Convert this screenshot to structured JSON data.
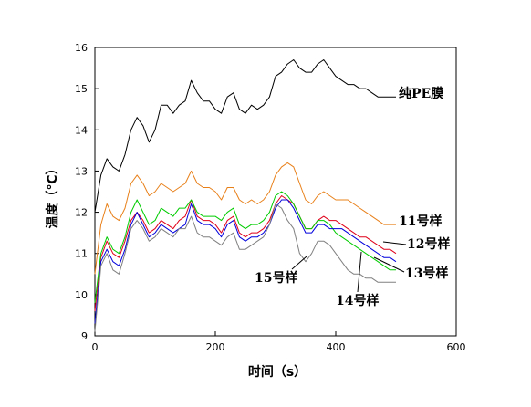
{
  "chart_data": {
    "type": "line",
    "xlabel": "时间（s）",
    "ylabel": "温度（℃）",
    "xlim": [
      0,
      600
    ],
    "ylim": [
      9,
      16
    ],
    "xticks": [
      0,
      200,
      400,
      600
    ],
    "yticks": [
      9,
      10,
      11,
      12,
      13,
      14,
      15,
      16
    ],
    "grid": false,
    "series": [
      {
        "name": "纯PE膜",
        "color": "#000000",
        "x": [
          0,
          10,
          20,
          30,
          40,
          50,
          60,
          70,
          80,
          90,
          100,
          110,
          120,
          130,
          140,
          150,
          160,
          170,
          180,
          190,
          200,
          210,
          220,
          230,
          240,
          250,
          260,
          270,
          280,
          290,
          300,
          310,
          320,
          330,
          340,
          350,
          360,
          370,
          380,
          390,
          400,
          410,
          420,
          430,
          440,
          450,
          460,
          470,
          480,
          490,
          500
        ],
        "values": [
          12.0,
          12.9,
          13.3,
          13.1,
          13.0,
          13.4,
          14.0,
          14.3,
          14.1,
          13.7,
          14.0,
          14.6,
          14.6,
          14.4,
          14.6,
          14.7,
          15.2,
          14.9,
          14.7,
          14.7,
          14.5,
          14.4,
          14.8,
          14.9,
          14.5,
          14.4,
          14.6,
          14.5,
          14.6,
          14.8,
          15.3,
          15.4,
          15.6,
          15.7,
          15.5,
          15.4,
          15.4,
          15.6,
          15.7,
          15.5,
          15.3,
          15.2,
          15.1,
          15.1,
          15.0,
          15.0,
          14.9,
          14.8,
          14.8,
          14.8,
          14.8
        ]
      },
      {
        "name": "11号样",
        "color": "#e8801a",
        "x": [
          0,
          10,
          20,
          30,
          40,
          50,
          60,
          70,
          80,
          90,
          100,
          110,
          120,
          130,
          140,
          150,
          160,
          170,
          180,
          190,
          200,
          210,
          220,
          230,
          240,
          250,
          260,
          270,
          280,
          290,
          300,
          310,
          320,
          330,
          340,
          350,
          360,
          370,
          380,
          390,
          400,
          410,
          420,
          430,
          440,
          450,
          460,
          470,
          480,
          490,
          500
        ],
        "values": [
          10.5,
          11.7,
          12.2,
          11.9,
          11.8,
          12.1,
          12.7,
          12.9,
          12.7,
          12.4,
          12.5,
          12.7,
          12.6,
          12.5,
          12.6,
          12.7,
          13.0,
          12.7,
          12.6,
          12.6,
          12.5,
          12.3,
          12.6,
          12.6,
          12.3,
          12.2,
          12.3,
          12.2,
          12.3,
          12.5,
          12.9,
          13.1,
          13.2,
          13.1,
          12.7,
          12.3,
          12.2,
          12.4,
          12.5,
          12.4,
          12.3,
          12.3,
          12.3,
          12.2,
          12.1,
          12.0,
          11.9,
          11.8,
          11.7,
          11.7,
          11.7
        ]
      },
      {
        "name": "12号样",
        "color": "#e0001a",
        "x": [
          0,
          10,
          20,
          30,
          40,
          50,
          60,
          70,
          80,
          90,
          100,
          110,
          120,
          130,
          140,
          150,
          160,
          170,
          180,
          190,
          200,
          210,
          220,
          230,
          240,
          250,
          260,
          270,
          280,
          290,
          300,
          310,
          320,
          330,
          340,
          350,
          360,
          370,
          380,
          390,
          400,
          410,
          420,
          430,
          440,
          450,
          460,
          470,
          480,
          490,
          500
        ],
        "values": [
          9.6,
          10.9,
          11.3,
          11.0,
          10.9,
          11.3,
          11.8,
          12.0,
          11.8,
          11.5,
          11.6,
          11.8,
          11.7,
          11.6,
          11.8,
          11.9,
          12.3,
          11.9,
          11.8,
          11.8,
          11.7,
          11.5,
          11.8,
          11.9,
          11.5,
          11.4,
          11.5,
          11.5,
          11.6,
          11.8,
          12.2,
          12.4,
          12.3,
          12.2,
          11.9,
          11.6,
          11.6,
          11.8,
          11.9,
          11.8,
          11.8,
          11.7,
          11.6,
          11.5,
          11.4,
          11.4,
          11.3,
          11.2,
          11.1,
          11.1,
          11.0
        ]
      },
      {
        "name": "13号样",
        "color": "#00cc00",
        "x": [
          0,
          10,
          20,
          30,
          40,
          50,
          60,
          70,
          80,
          90,
          100,
          110,
          120,
          130,
          140,
          150,
          160,
          170,
          180,
          190,
          200,
          210,
          220,
          230,
          240,
          250,
          260,
          270,
          280,
          290,
          300,
          310,
          320,
          330,
          340,
          350,
          360,
          370,
          380,
          390,
          400,
          410,
          420,
          430,
          440,
          450,
          460,
          470,
          480,
          490,
          500
        ],
        "values": [
          9.8,
          11.0,
          11.4,
          11.1,
          11.0,
          11.4,
          12.0,
          12.3,
          12.0,
          11.7,
          11.8,
          12.1,
          12.0,
          11.9,
          12.1,
          12.1,
          12.3,
          12.0,
          11.9,
          11.9,
          11.9,
          11.8,
          12.0,
          12.1,
          11.7,
          11.6,
          11.7,
          11.7,
          11.8,
          12.0,
          12.4,
          12.5,
          12.4,
          12.2,
          11.9,
          11.6,
          11.6,
          11.8,
          11.8,
          11.7,
          11.5,
          11.4,
          11.3,
          11.2,
          11.1,
          11.0,
          10.9,
          10.8,
          10.7,
          10.6,
          10.6
        ]
      },
      {
        "name": "14号样",
        "color": "#0000dd",
        "x": [
          0,
          10,
          20,
          30,
          40,
          50,
          60,
          70,
          80,
          90,
          100,
          110,
          120,
          130,
          140,
          150,
          160,
          170,
          180,
          190,
          200,
          210,
          220,
          230,
          240,
          250,
          260,
          270,
          280,
          290,
          300,
          310,
          320,
          330,
          340,
          350,
          360,
          370,
          380,
          390,
          400,
          410,
          420,
          430,
          440,
          450,
          460,
          470,
          480,
          490,
          500
        ],
        "values": [
          9.3,
          10.8,
          11.1,
          10.8,
          10.7,
          11.1,
          11.7,
          12.0,
          11.7,
          11.4,
          11.5,
          11.7,
          11.6,
          11.5,
          11.6,
          11.7,
          12.2,
          11.8,
          11.7,
          11.7,
          11.6,
          11.4,
          11.7,
          11.8,
          11.4,
          11.3,
          11.4,
          11.4,
          11.5,
          11.7,
          12.1,
          12.3,
          12.3,
          12.1,
          11.8,
          11.5,
          11.5,
          11.7,
          11.7,
          11.6,
          11.6,
          11.6,
          11.5,
          11.4,
          11.3,
          11.2,
          11.1,
          11.0,
          10.9,
          10.9,
          10.8
        ]
      },
      {
        "name": "15号样",
        "color": "#808080",
        "x": [
          0,
          10,
          20,
          30,
          40,
          50,
          60,
          70,
          80,
          90,
          100,
          110,
          120,
          130,
          140,
          150,
          160,
          170,
          180,
          190,
          200,
          210,
          220,
          230,
          240,
          250,
          260,
          270,
          280,
          290,
          300,
          310,
          320,
          330,
          340,
          350,
          360,
          370,
          380,
          390,
          400,
          410,
          420,
          430,
          440,
          450,
          460,
          470,
          480,
          490,
          500
        ],
        "values": [
          9.1,
          10.7,
          11.0,
          10.6,
          10.5,
          11.0,
          11.6,
          11.8,
          11.6,
          11.3,
          11.4,
          11.6,
          11.5,
          11.4,
          11.6,
          11.6,
          11.9,
          11.5,
          11.4,
          11.4,
          11.3,
          11.2,
          11.4,
          11.5,
          11.1,
          11.1,
          11.2,
          11.3,
          11.4,
          11.7,
          12.2,
          12.1,
          11.8,
          11.6,
          11.0,
          10.8,
          11.0,
          11.3,
          11.3,
          11.2,
          11.0,
          10.8,
          10.6,
          10.5,
          10.5,
          10.4,
          10.4,
          10.3,
          10.3,
          10.3,
          10.3
        ]
      }
    ]
  }
}
